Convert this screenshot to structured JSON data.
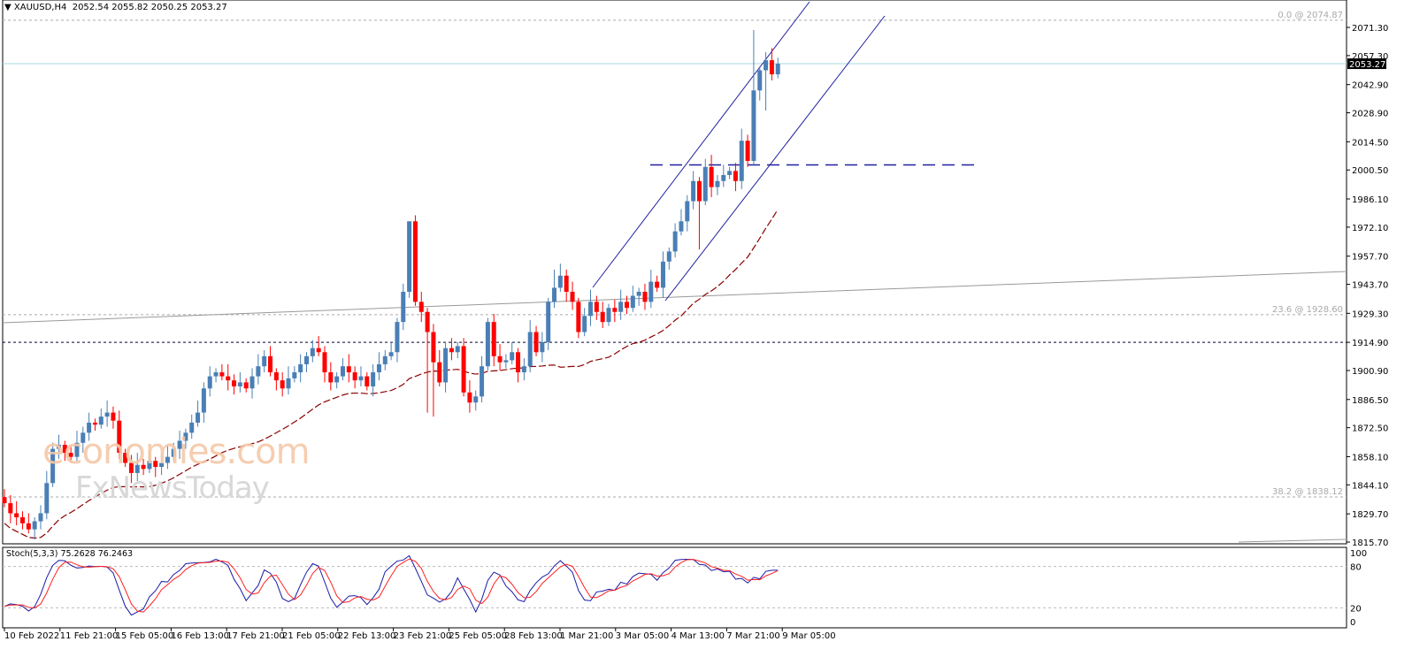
{
  "header": {
    "symbol": "XAUUSD,H4",
    "open": "2052.54",
    "high": "2055.82",
    "low": "2050.25",
    "close": "2053.27"
  },
  "watermark": {
    "line1": "economies.com",
    "line2": "FxNewsToday"
  },
  "chart_data": {
    "type": "candlestick",
    "title": "XAUUSD,H4",
    "ylim": [
      1815.7,
      2071.3
    ],
    "y_ticks": [
      "2071.30",
      "2057.30",
      "2042.90",
      "2028.90",
      "2014.50",
      "2000.50",
      "1986.10",
      "1972.10",
      "1957.70",
      "1943.70",
      "1929.30",
      "1914.90",
      "1900.90",
      "1886.50",
      "1872.50",
      "1858.10",
      "1844.10",
      "1829.70",
      "1815.70"
    ],
    "current_price": "2053.27",
    "x_ticks": [
      "10 Feb 2022",
      "11 Feb 21:00",
      "15 Feb 05:00",
      "16 Feb 13:00",
      "17 Feb 21:00",
      "21 Feb 05:00",
      "22 Feb 13:00",
      "23 Feb 21:00",
      "25 Feb 05:00",
      "28 Feb 13:00",
      "1 Mar 21:00",
      "3 Mar 05:00",
      "4 Mar 13:00",
      "7 Mar 21:00",
      "9 Mar 05:00"
    ],
    "first_open": 1838,
    "closes": [
      1835,
      1830,
      1828,
      1825,
      1822,
      1826,
      1830,
      1845,
      1862,
      1864,
      1860,
      1858,
      1865,
      1870,
      1875,
      1874,
      1878,
      1880,
      1876,
      1860,
      1855,
      1850,
      1854,
      1852,
      1856,
      1853,
      1855,
      1858,
      1862,
      1866,
      1870,
      1875,
      1880,
      1892,
      1898,
      1900,
      1898,
      1896,
      1893,
      1895,
      1892,
      1898,
      1903,
      1908,
      1900,
      1896,
      1892,
      1897,
      1900,
      1904,
      1908,
      1912,
      1910,
      1900,
      1895,
      1898,
      1903,
      1900,
      1896,
      1898,
      1893,
      1900,
      1904,
      1908,
      1910,
      1925,
      1940,
      1975,
      1935,
      1930,
      1920,
      1905,
      1895,
      1912,
      1910,
      1913,
      1890,
      1885,
      1888,
      1903,
      1925,
      1908,
      1905,
      1906,
      1910,
      1900,
      1903,
      1920,
      1910,
      1915,
      1935,
      1942,
      1948,
      1940,
      1935,
      1920,
      1928,
      1935,
      1930,
      1925,
      1932,
      1930,
      1935,
      1932,
      1938,
      1940,
      1935,
      1945,
      1942,
      1955,
      1960,
      1970,
      1975,
      1985,
      1995,
      1985,
      2002,
      1992,
      1995,
      1998,
      2000,
      1995,
      2015,
      2005,
      2040,
      2050,
      2055,
      2048,
      2053.27
    ],
    "wick_overrides": [
      {
        "i": 0,
        "high": 1842
      },
      {
        "i": 67,
        "high": 1975
      },
      {
        "i": 70,
        "low": 1880
      },
      {
        "i": 71,
        "low": 1878
      },
      {
        "i": 91,
        "high": 1951
      },
      {
        "i": 115,
        "low": 1961
      },
      {
        "i": 124,
        "high": 2070
      },
      {
        "i": 126,
        "low": 2030
      }
    ],
    "levels": [
      {
        "label": "0.0 @ 2074.87",
        "price": 2074.87,
        "kind": "fib"
      },
      {
        "label": "23.6 @ 1928.60",
        "price": 1928.6,
        "kind": "fib"
      },
      {
        "label": "38.2 @ 1838.12",
        "price": 1838.12,
        "kind": "fib"
      },
      {
        "price": 1914.9,
        "kind": "support"
      },
      {
        "price": 2003,
        "kind": "resistance"
      }
    ],
    "indicator": {
      "name": "Stoch(5,3,3)",
      "k": "75.2628",
      "d": "76.2463",
      "levels": [
        "100",
        "80",
        "20",
        "0"
      ]
    },
    "colors": {
      "up": "#4a7fb5",
      "down": "#ff0000",
      "ma": "#8b0000",
      "channel": "#2020a0",
      "k": "#1a1aa6",
      "d": "#ff2020"
    }
  }
}
